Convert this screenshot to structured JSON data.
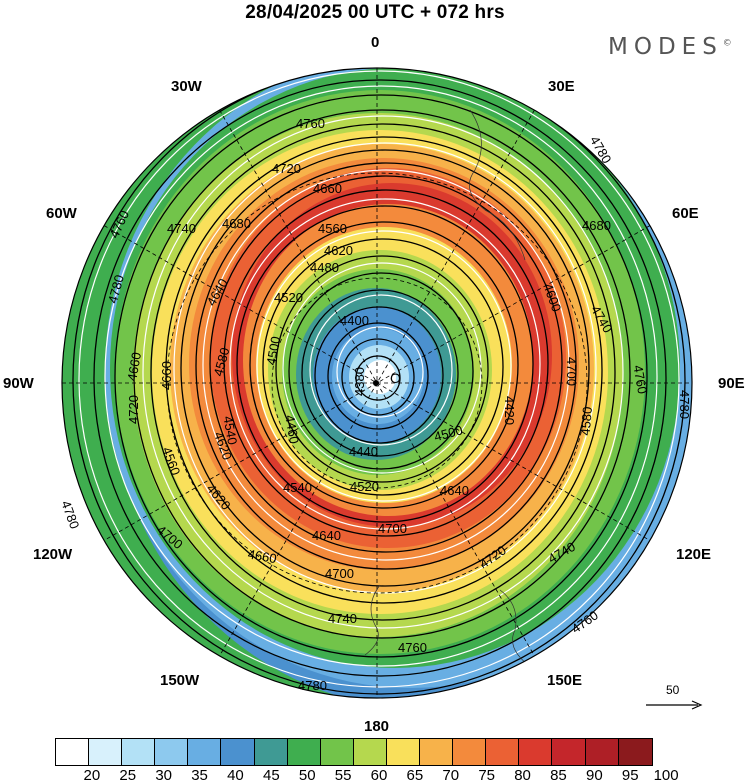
{
  "title": "28/04/2025  00 UTC  + 072 hrs",
  "brand": "MODES",
  "brand_mark": "©",
  "longitude_labels": {
    "n": "0",
    "nne": "30E",
    "ene": "60E",
    "e": "90E",
    "ese": "120E",
    "sse": "150E",
    "s": "180",
    "ssw": "150W",
    "wsw": "120W",
    "w": "90W",
    "wnw": "60W",
    "nnw": "30W"
  },
  "reference_vector": "50",
  "contour_labels": [
    "4760",
    "4780",
    "4720",
    "4660",
    "4740",
    "4760",
    "4780",
    "4680",
    "4600",
    "4560",
    "4620",
    "4640",
    "4520",
    "4660",
    "4480",
    "4680",
    "4700",
    "4740",
    "4760",
    "4780",
    "4660",
    "4720",
    "4580",
    "4540",
    "4500",
    "4460",
    "4400",
    "4380",
    "4420",
    "4560",
    "4620",
    "4640",
    "4700",
    "4780",
    "4700",
    "4740",
    "4720",
    "4760",
    "4660",
    "4500",
    "4440",
    "4520",
    "4540",
    "4580",
    "4620",
    "4640",
    "4680",
    "4700",
    "4720",
    "4740",
    "4760",
    "4780"
  ],
  "colorbar": {
    "colors": [
      "#ffffff",
      "#d8f1fc",
      "#b3e1f6",
      "#8dc9ee",
      "#68aee3",
      "#4b91cf",
      "#3f9a94",
      "#3fae4f",
      "#72c44a",
      "#b5d84e",
      "#f9e05b",
      "#f7b24a",
      "#f38a3c",
      "#eb6134",
      "#da3a2e",
      "#c4262b",
      "#ae1f26",
      "#8b1a1d"
    ],
    "ticks": [
      "20",
      "25",
      "30",
      "35",
      "40",
      "45",
      "50",
      "55",
      "60",
      "65",
      "70",
      "75",
      "80",
      "85",
      "90",
      "95",
      "100"
    ]
  },
  "map_data": {
    "projection": "north-polar-stereographic",
    "field": "500 hPa geopotential height (gpm) with wind speed shading and streamlines",
    "low_center_marker": "O"
  }
}
